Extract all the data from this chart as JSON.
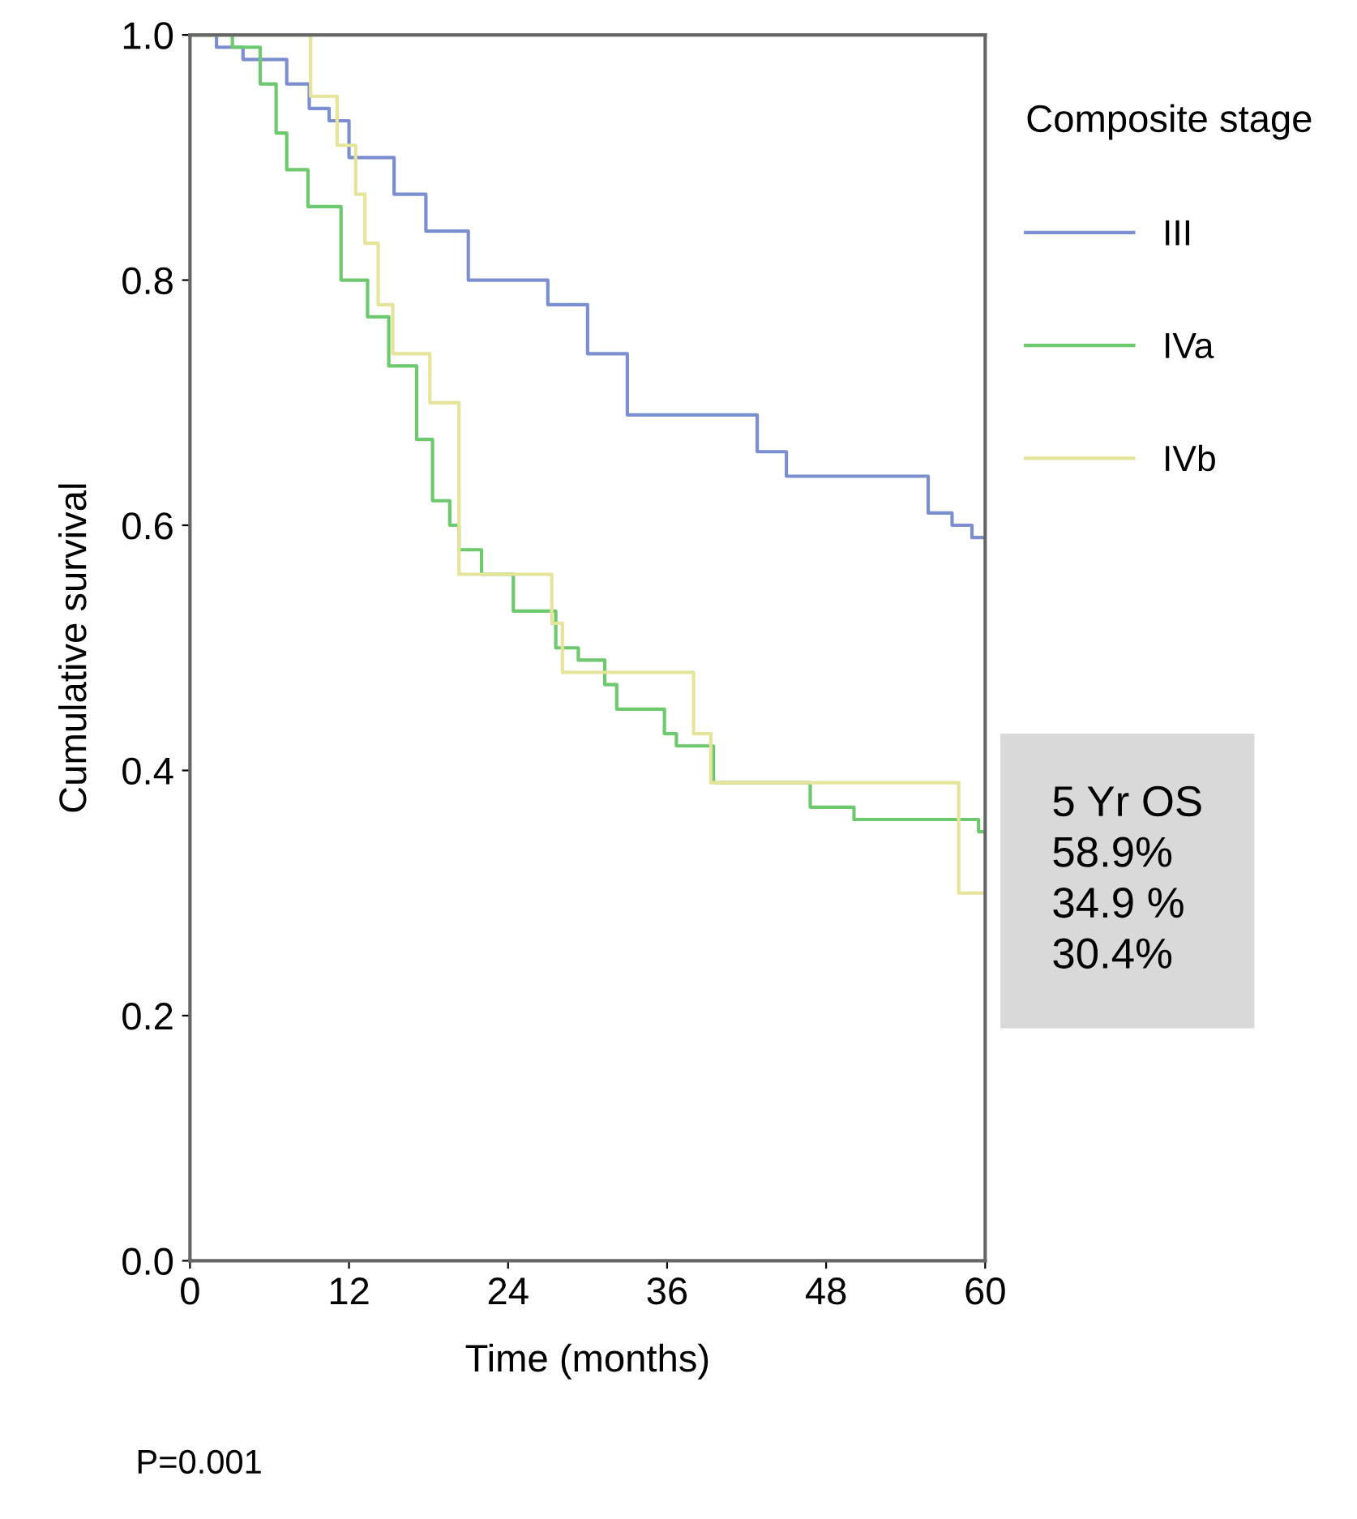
{
  "chart_data": {
    "type": "step",
    "xlabel": "Time (months)",
    "ylabel": "Cumulative survival",
    "legend_title": "Composite stage",
    "legend": "right",
    "xlim": [
      0,
      60
    ],
    "ylim": [
      0,
      1
    ],
    "xticks": [
      0,
      12,
      24,
      36,
      48,
      60
    ],
    "yticks": [
      {
        "value": 0,
        "label": "0.0"
      },
      {
        "value": 0.2,
        "label": "0.2"
      },
      {
        "value": 0.4,
        "label": "0.4"
      },
      {
        "value": 0.6,
        "label": "0.6"
      },
      {
        "value": 0.8,
        "label": "0.8"
      },
      {
        "value": 1,
        "label": "1.0"
      }
    ],
    "grid": false,
    "marker": "none",
    "line_style": "solid",
    "series": [
      {
        "name": "III",
        "color": "#7b8fd0",
        "x": [
          0,
          2,
          4,
          7.3,
          9,
          10.5,
          12,
          15.4,
          17.8,
          21,
          27,
          30,
          33,
          42.8,
          45,
          55.7,
          57.5,
          59,
          60
        ],
        "values": [
          1.0,
          0.99,
          0.98,
          0.96,
          0.94,
          0.93,
          0.9,
          0.87,
          0.84,
          0.8,
          0.78,
          0.74,
          0.69,
          0.66,
          0.64,
          0.61,
          0.6,
          0.59,
          0.59
        ]
      },
      {
        "name": "IVa",
        "color": "#6dc96d",
        "x": [
          0,
          3.2,
          5.3,
          6.5,
          7.3,
          8.9,
          11.4,
          13.4,
          15,
          17.1,
          18.3,
          19.6,
          20.3,
          22,
          24.4,
          27.6,
          29.3,
          31.3,
          32.2,
          35.8,
          36.7,
          39.5,
          46.8,
          50.1,
          59.5,
          60
        ],
        "values": [
          1.0,
          0.99,
          0.96,
          0.92,
          0.89,
          0.86,
          0.8,
          0.77,
          0.73,
          0.67,
          0.62,
          0.6,
          0.58,
          0.56,
          0.53,
          0.5,
          0.49,
          0.47,
          0.45,
          0.43,
          0.42,
          0.39,
          0.37,
          0.36,
          0.35,
          0.35
        ]
      },
      {
        "name": "IVb",
        "color": "#e6e39a",
        "x": [
          0,
          9.1,
          11.1,
          12.5,
          13.2,
          14.2,
          15.3,
          18.1,
          20.3,
          27.3,
          28.1,
          38,
          39.3,
          58,
          60
        ],
        "values": [
          1.0,
          0.95,
          0.91,
          0.87,
          0.83,
          0.78,
          0.74,
          0.7,
          0.56,
          0.52,
          0.48,
          0.43,
          0.39,
          0.3,
          0.3
        ]
      }
    ],
    "annotations": [
      "5 Yr OS\n58.9%\n34.9 %\n30.4%",
      "P=0.001"
    ]
  }
}
